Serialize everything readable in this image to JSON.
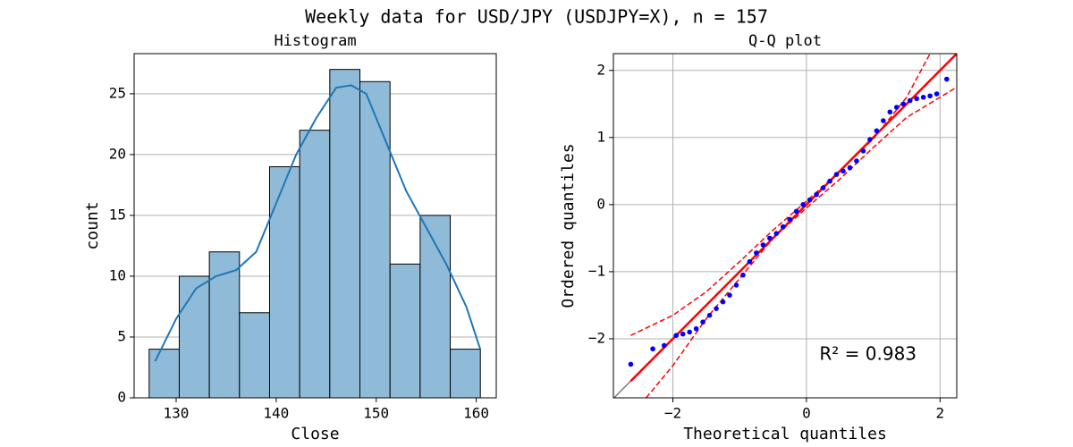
{
  "title": "Weekly data for USD/JPY (USDJPY=X), n = 157",
  "chart_data": [
    {
      "type": "histogram",
      "title": "Histogram",
      "xlabel": "Close",
      "ylabel": "count",
      "bins": [
        127.3,
        130.31,
        133.32,
        136.33,
        139.34,
        142.35,
        145.36,
        148.37,
        151.38,
        154.39,
        157.4,
        160.41
      ],
      "values": [
        4,
        10,
        12,
        7,
        19,
        22,
        27,
        26,
        11,
        15,
        4
      ],
      "color": "#8fbbd9",
      "edgecolor": "#000000",
      "kde": {
        "x": [
          127.9,
          130,
          132,
          134,
          136,
          138,
          140,
          142,
          144,
          146,
          147.5,
          149,
          151,
          153,
          155,
          157,
          159,
          160.4
        ],
        "values": [
          3,
          6.5,
          9,
          10,
          10.5,
          12,
          16,
          20,
          23,
          25.5,
          25.7,
          25,
          21,
          17,
          14,
          11,
          7.5,
          4
        ],
        "color": "#1f77b4"
      },
      "xlim": [
        125.8,
        162.0
      ],
      "xticks": [
        130,
        140,
        150,
        160
      ],
      "ylim": [
        0,
        28.3
      ],
      "yticks": [
        0,
        5,
        10,
        15,
        20,
        25
      ],
      "grid": "y"
    },
    {
      "type": "scatter",
      "title": "Q-Q plot",
      "xlabel": "Theoretical quantiles",
      "ylabel": "Ordered quantiles",
      "x": [
        -2.63,
        -2.3,
        -2.13,
        -1.95,
        -1.85,
        -1.75,
        -1.65,
        -1.55,
        -1.45,
        -1.35,
        -1.25,
        -1.15,
        -1.05,
        -0.95,
        -0.85,
        -0.75,
        -0.65,
        -0.55,
        -0.45,
        -0.35,
        -0.25,
        -0.15,
        -0.05,
        0.05,
        0.15,
        0.25,
        0.35,
        0.45,
        0.55,
        0.65,
        0.75,
        0.85,
        0.95,
        1.05,
        1.15,
        1.25,
        1.35,
        1.45,
        1.55,
        1.65,
        1.75,
        1.85,
        1.95,
        2.1
      ],
      "values": [
        -2.38,
        -2.15,
        -2.1,
        -1.95,
        -1.93,
        -1.9,
        -1.85,
        -1.75,
        -1.65,
        -1.55,
        -1.45,
        -1.35,
        -1.2,
        -1.05,
        -0.85,
        -0.72,
        -0.6,
        -0.5,
        -0.43,
        -0.33,
        -0.22,
        -0.1,
        0,
        0.07,
        0.15,
        0.25,
        0.35,
        0.45,
        0.5,
        0.55,
        0.65,
        0.8,
        0.97,
        1.1,
        1.25,
        1.38,
        1.45,
        1.5,
        1.55,
        1.58,
        1.6,
        1.62,
        1.65,
        1.87
      ],
      "color": "#0000ff",
      "lines": [
        {
          "x": [
            -2.89,
            2.25
          ],
          "values": [
            -2.89,
            2.25
          ],
          "color": "#808080",
          "dash": false,
          "width": 1.5
        },
        {
          "x": [
            -2.63,
            2.25
          ],
          "values": [
            -2.63,
            2.25
          ],
          "color": "#ff0000",
          "dash": false,
          "width": 2.5
        },
        {
          "x": [
            -2.63,
            -2,
            -1.5,
            -1,
            -0.5,
            0,
            0.5,
            1,
            1.5,
            1.85
          ],
          "values": [
            -1.95,
            -1.65,
            -1.3,
            -0.85,
            -0.38,
            0.05,
            0.5,
            0.98,
            1.6,
            2.25
          ],
          "color": "#ff0000",
          "dash": true,
          "width": 1.5
        },
        {
          "x": [
            -2.4,
            -2,
            -1.5,
            -1,
            -0.5,
            0,
            0.5,
            1,
            1.5,
            2,
            2.25
          ],
          "values": [
            -2.88,
            -2.4,
            -1.7,
            -1.1,
            -0.5,
            -0.05,
            0.38,
            0.85,
            1.3,
            1.6,
            1.75
          ],
          "color": "#ff0000",
          "dash": true,
          "width": 1.5
        }
      ],
      "annotation": "R² = 0.983",
      "xlim": [
        -2.89,
        2.25
      ],
      "xticks": [
        {
          "value": -2,
          "label": "−2"
        },
        0,
        2
      ],
      "ylim": [
        -2.88,
        2.25
      ],
      "yticks": [
        {
          "value": -2,
          "label": "−2"
        },
        {
          "value": -1,
          "label": "−1"
        },
        0,
        1,
        2
      ],
      "grid": "both"
    }
  ]
}
